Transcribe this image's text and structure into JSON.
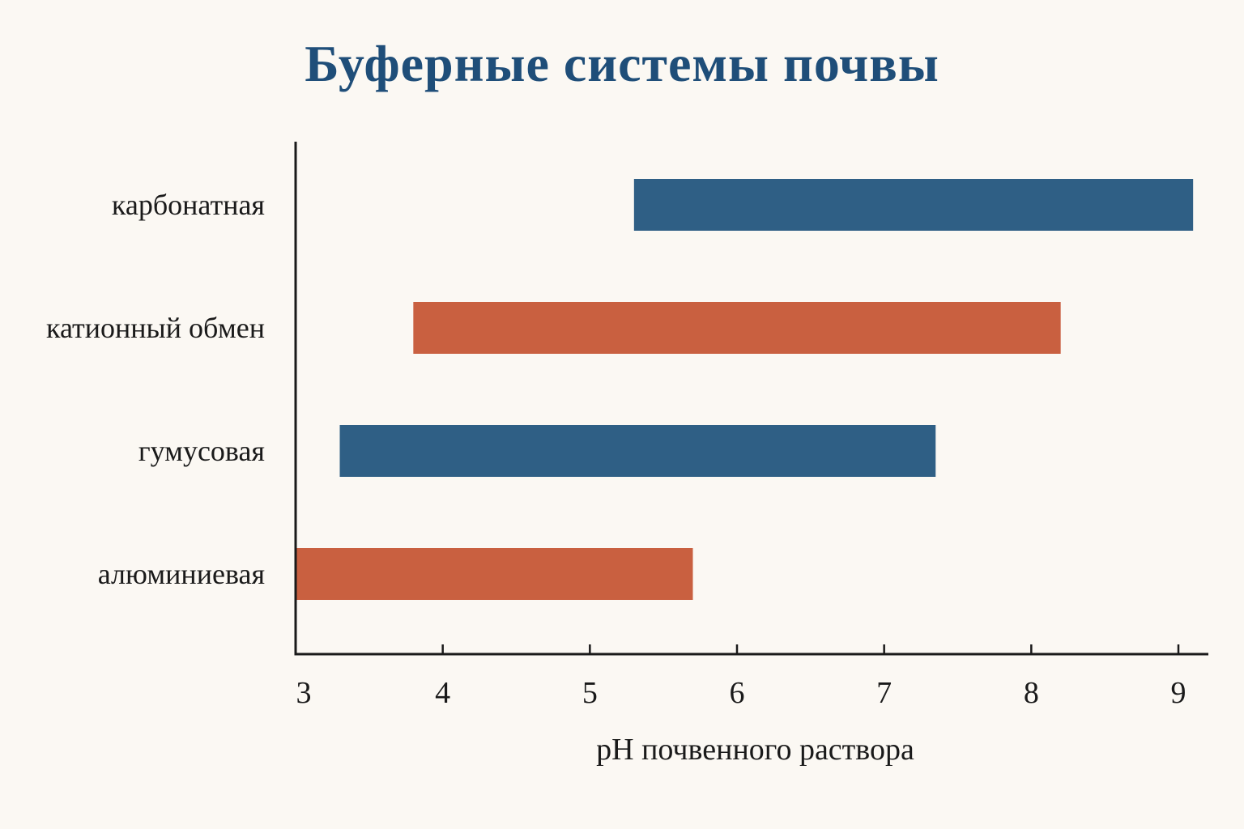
{
  "chart_data": {
    "type": "bar",
    "orientation": "horizontal",
    "title": "Буферные системы почвы",
    "xlabel": "pH почвенного раствора",
    "ylabel": "",
    "xlim": [
      3,
      9.2
    ],
    "xticks": [
      3,
      4,
      5,
      6,
      7,
      8,
      9
    ],
    "grid": false,
    "categories": [
      "карбонатная",
      "катионный обмен",
      "гумусовая",
      "алюминиевая"
    ],
    "ranges": [
      {
        "category": "карбонатная",
        "start": 5.3,
        "end": 9.1,
        "color": "#2f5f85"
      },
      {
        "category": "катионный обмен",
        "start": 3.8,
        "end": 8.2,
        "color": "#c96040"
      },
      {
        "category": "гумусовая",
        "start": 3.3,
        "end": 7.35,
        "color": "#2f5f85"
      },
      {
        "category": "алюминиевая",
        "start": 3.0,
        "end": 5.7,
        "color": "#c96040"
      }
    ],
    "colors": {
      "blue": "#2f5f85",
      "orange": "#c96040",
      "title": "#1f4e79",
      "axis": "#1a1a1a",
      "background": "#fbf8f3"
    }
  }
}
